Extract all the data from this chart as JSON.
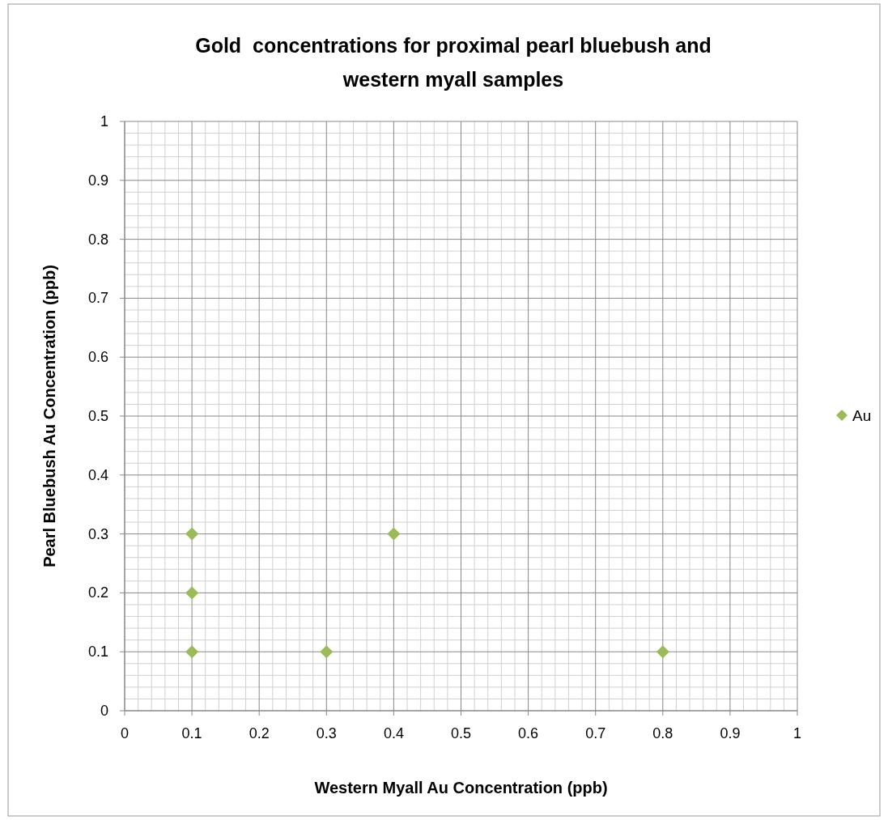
{
  "chart_data": {
    "type": "scatter",
    "title": "Gold  concentrations for proximal pearl bluebush and western myall samples",
    "xlabel": "Western Myall Au Concentration (ppb)",
    "ylabel": "Pearl Bluebush Au Concentration (ppb)",
    "series": [
      {
        "name": "Au",
        "color": "#9bbb59",
        "x": [
          0.1,
          0.1,
          0.1,
          0.3,
          0.4,
          0.8
        ],
        "values": [
          0.3,
          0.2,
          0.1,
          0.1,
          0.3,
          0.1
        ]
      }
    ],
    "xlim": [
      0,
      1
    ],
    "ylim": [
      0,
      1
    ],
    "xticks": [
      0,
      0.1,
      0.2,
      0.3,
      0.4,
      0.5,
      0.6,
      0.7,
      0.8,
      0.9,
      1
    ],
    "yticks": [
      0,
      0.1,
      0.2,
      0.3,
      0.4,
      0.5,
      0.6,
      0.7,
      0.8,
      0.9,
      1
    ],
    "grid": true,
    "legend": "right",
    "marker": "diamond"
  }
}
